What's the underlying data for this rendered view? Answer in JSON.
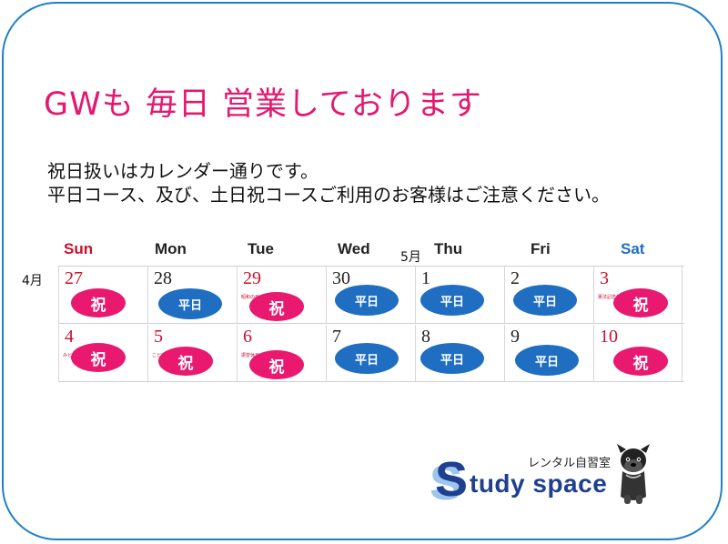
{
  "headline": "GWも 毎日 営業しております",
  "notice": {
    "line1": "祝日扱いはカレンダー通りです。",
    "line2": "平日コース、及び、土日祝コースご利用のお客様はご注意ください。"
  },
  "calendar": {
    "weekdays": [
      "Sun",
      "Mon",
      "Tue",
      "Wed",
      "Thu",
      "Fri",
      "Sat"
    ],
    "month_left": "4月",
    "month_top": "5月",
    "weeks": [
      [
        {
          "day": "27",
          "badge": "祝",
          "red": true
        },
        {
          "day": "28",
          "badge": "平日",
          "red": false
        },
        {
          "day": "29",
          "badge": "祝",
          "red": true,
          "note": "昭和の日"
        },
        {
          "day": "30",
          "badge": "平日",
          "red": false
        },
        {
          "day": "1",
          "badge": "平日",
          "red": false
        },
        {
          "day": "2",
          "badge": "平日",
          "red": false
        },
        {
          "day": "3",
          "badge": "祝",
          "red": true,
          "note": "憲法記念日"
        }
      ],
      [
        {
          "day": "4",
          "badge": "祝",
          "red": true,
          "note": "みどりの日"
        },
        {
          "day": "5",
          "badge": "祝",
          "red": true,
          "note": "こどもの日"
        },
        {
          "day": "6",
          "badge": "祝",
          "red": true,
          "note": "振替休日"
        },
        {
          "day": "7",
          "badge": "平日",
          "red": false
        },
        {
          "day": "8",
          "badge": "平日",
          "red": false
        },
        {
          "day": "9",
          "badge": "平日",
          "red": false
        },
        {
          "day": "10",
          "badge": "祝",
          "red": true
        }
      ]
    ],
    "colors": {
      "holiday": "#e8196f",
      "weekday": "#1f6ec2",
      "sunday": "#c8102e",
      "saturday": "#1f6fc0"
    }
  },
  "logo": {
    "tagline": "レンタル自習室",
    "letter": "S",
    "word": "tudy space",
    "mascot": "dog-mascot-icon"
  }
}
